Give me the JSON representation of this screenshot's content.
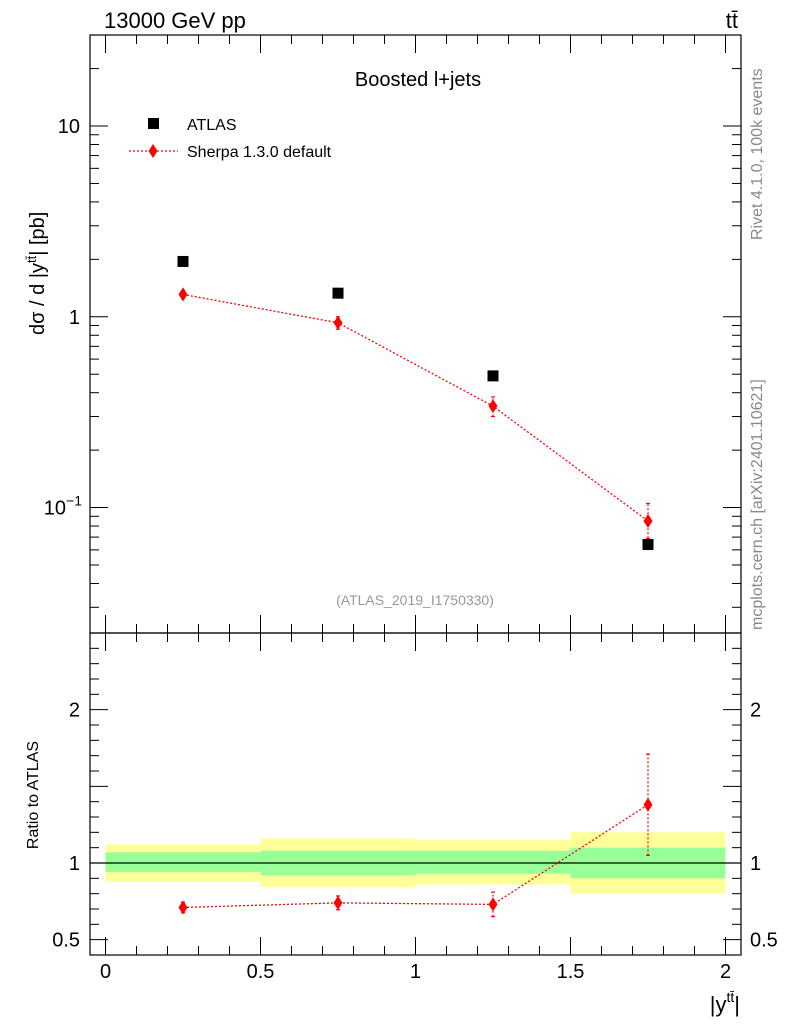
{
  "header": {
    "energy": "13000 GeV pp",
    "process": "tt̄"
  },
  "side_text": {
    "rivet": "Rivet 4.1.0,  100k events",
    "mcplots": "mcplots.cern.ch [arXiv:2401.10621]"
  },
  "chart_data": [
    {
      "type": "scatter",
      "title": "Boosted l+jets",
      "analysis_tag": "(ATLAS_2019_I1750330)",
      "ylabel": "dσ / d |y^{tt̄}| [pb]",
      "yscale": "log",
      "xlim": [
        -0.05,
        2.05
      ],
      "ylim": [
        0.022,
        30
      ],
      "y_ticks": [
        {
          "value": 0.1,
          "label": "10",
          "exp": "−1"
        },
        {
          "value": 1,
          "label": "1",
          "exp": ""
        },
        {
          "value": 10,
          "label": "10",
          "exp": ""
        }
      ],
      "legend": [
        "ATLAS",
        "Sherpa 1.3.0 default"
      ],
      "legend_position": "top-left",
      "series": [
        {
          "name": "ATLAS",
          "color": "#000000",
          "marker": "square",
          "x": [
            0.25,
            0.75,
            1.25,
            1.75
          ],
          "y": [
            1.95,
            1.33,
            0.49,
            0.064
          ]
        },
        {
          "name": "Sherpa 1.3.0 default",
          "color": "#ff0000",
          "marker": "diamond",
          "line": "dotted",
          "x": [
            0.25,
            0.75,
            1.25,
            1.75
          ],
          "y": [
            1.31,
            0.93,
            0.34,
            0.085
          ],
          "yerr_low": [
            0.06,
            0.07,
            0.04,
            0.016
          ],
          "yerr_high": [
            0.06,
            0.07,
            0.04,
            0.02
          ]
        }
      ]
    },
    {
      "type": "scatter",
      "ylabel": "Ratio to ATLAS",
      "xlabel": "|y^{tt̄}|",
      "xlim": [
        -0.05,
        2.05
      ],
      "ylim": [
        0.4,
        2.5
      ],
      "x_ticks": [
        {
          "value": 0,
          "label": "0"
        },
        {
          "value": 0.5,
          "label": "0.5"
        },
        {
          "value": 1,
          "label": "1"
        },
        {
          "value": 1.5,
          "label": "1.5"
        },
        {
          "value": 2,
          "label": "2"
        }
      ],
      "y_ticks": [
        {
          "value": 0.5,
          "label": "0.5"
        },
        {
          "value": 1,
          "label": "1"
        },
        {
          "value": 2,
          "label": "2"
        }
      ],
      "reference_line": 1,
      "bands": [
        {
          "x0": 0.0,
          "x1": 0.5,
          "stat_lo": 0.94,
          "stat_hi": 1.07,
          "tot_lo": 0.88,
          "tot_hi": 1.12
        },
        {
          "x0": 0.5,
          "x1": 1.0,
          "stat_lo": 0.92,
          "stat_hi": 1.08,
          "tot_lo": 0.84,
          "tot_hi": 1.16
        },
        {
          "x0": 1.0,
          "x1": 1.5,
          "stat_lo": 0.93,
          "stat_hi": 1.08,
          "tot_lo": 0.86,
          "tot_hi": 1.15
        },
        {
          "x0": 1.5,
          "x1": 2.0,
          "stat_lo": 0.9,
          "stat_hi": 1.1,
          "tot_lo": 0.8,
          "tot_hi": 1.2
        }
      ],
      "band_colors": {
        "stat": "#99ff99",
        "total": "#ffff99"
      },
      "series": [
        {
          "name": "Sherpa 1.3.0 default",
          "color": "#ff0000",
          "marker": "diamond",
          "line": "dotted",
          "x": [
            0.25,
            0.75,
            1.25,
            1.75
          ],
          "y": [
            0.71,
            0.74,
            0.73,
            1.38
          ],
          "yerr_low": [
            0.035,
            0.045,
            0.08,
            0.33
          ],
          "yerr_high": [
            0.035,
            0.045,
            0.08,
            0.33
          ]
        }
      ]
    }
  ]
}
